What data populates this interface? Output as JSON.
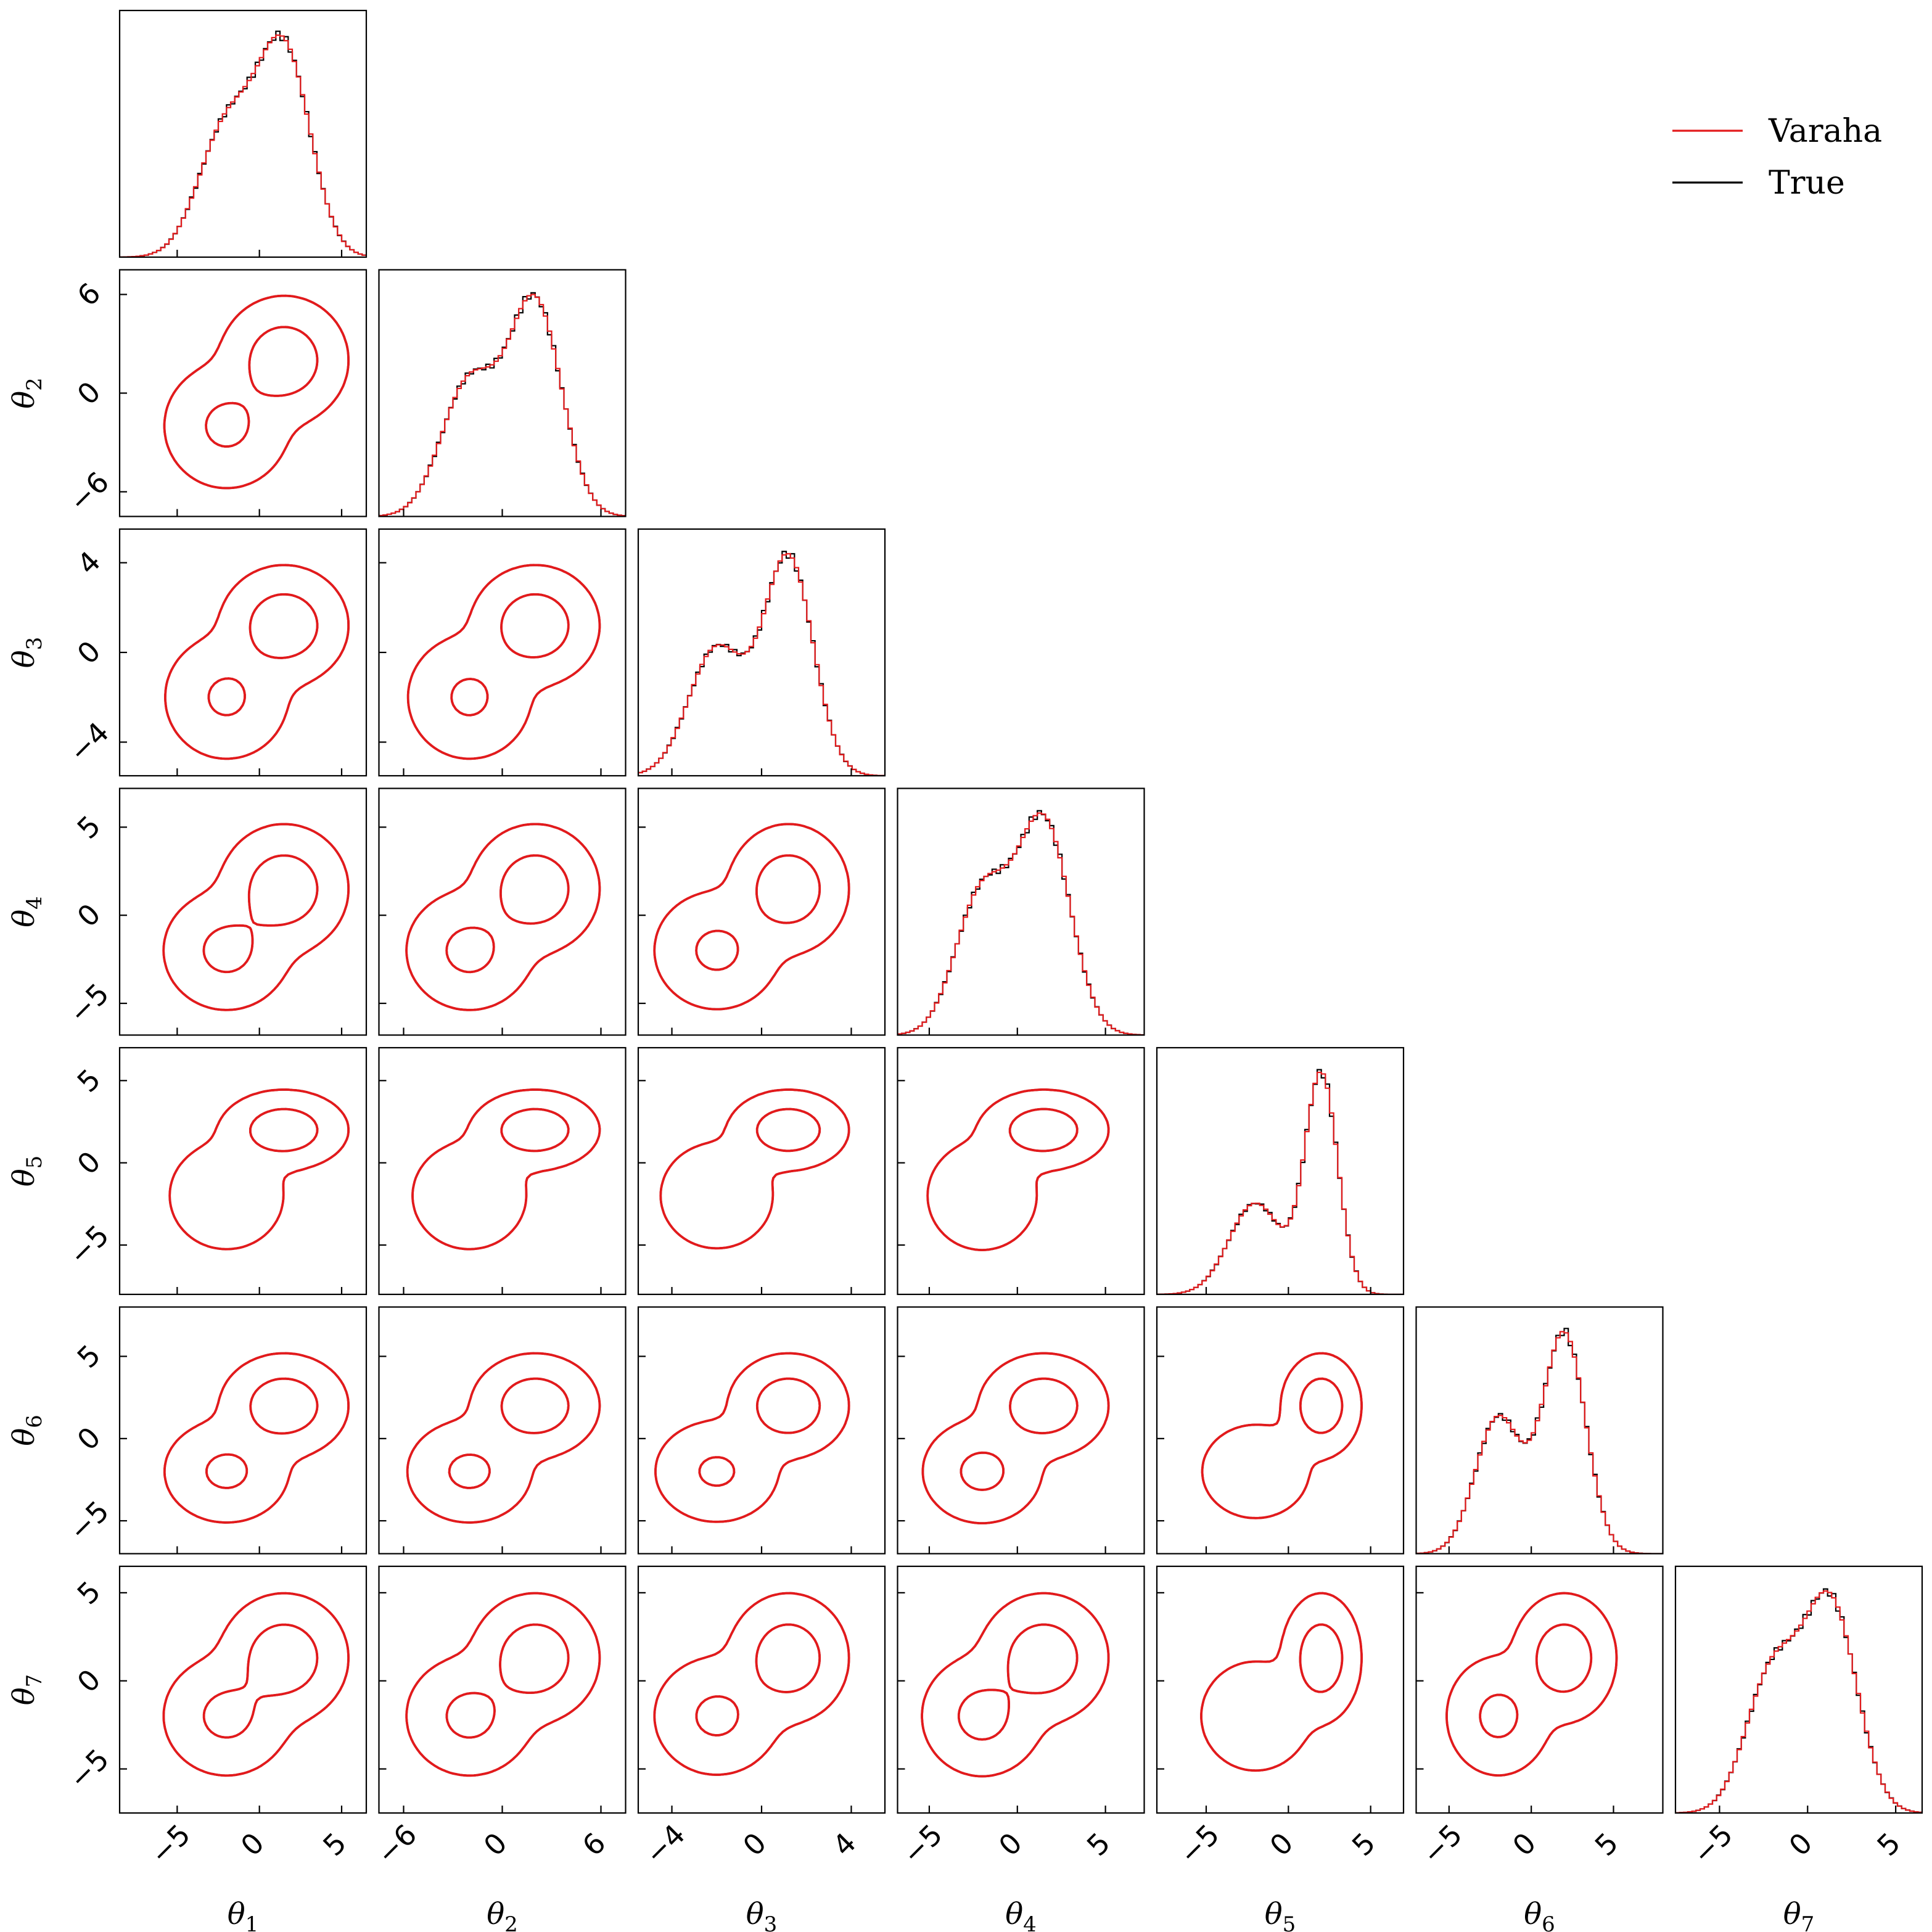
{
  "chart_data": {
    "type": "corner",
    "parameters": [
      "θ1",
      "θ2",
      "θ3",
      "θ4",
      "θ5",
      "θ6",
      "θ7"
    ],
    "axis_labels": [
      {
        "sym": "θ",
        "sub": "1"
      },
      {
        "sym": "θ",
        "sub": "2"
      },
      {
        "sym": "θ",
        "sub": "3"
      },
      {
        "sym": "θ",
        "sub": "4"
      },
      {
        "sym": "θ",
        "sub": "5"
      },
      {
        "sym": "θ",
        "sub": "6"
      },
      {
        "sym": "θ",
        "sub": "7"
      }
    ],
    "ranges": [
      [
        -8.5,
        6.5
      ],
      [
        -7.5,
        7.5
      ],
      [
        -5.5,
        5.5
      ],
      [
        -6.8,
        7.2
      ],
      [
        -8.0,
        7.0
      ],
      [
        -7.0,
        8.0
      ],
      [
        -7.5,
        6.5
      ]
    ],
    "ticks": [
      [
        -5,
        0,
        5
      ],
      [
        -6,
        0,
        6
      ],
      [
        -4,
        0,
        4
      ],
      [
        -5,
        0,
        5
      ],
      [
        -5,
        0,
        5
      ],
      [
        -5,
        0,
        5
      ],
      [
        -5,
        0,
        5
      ]
    ],
    "tick_labels": [
      [
        "−5",
        "0",
        "5"
      ],
      [
        "−6",
        "0",
        "6"
      ],
      [
        "−4",
        "0",
        "4"
      ],
      [
        "−5",
        "0",
        "5"
      ],
      [
        "−5",
        "0",
        "5"
      ],
      [
        "−5",
        "0",
        "5"
      ],
      [
        "−5",
        "0",
        "5"
      ]
    ],
    "modes": [
      {
        "mu": [
          -2.0,
          -2.0,
          -2.0,
          -2.0,
          -2.0,
          -2.0,
          -2.0
        ],
        "sigma": [
          1.7,
          1.7,
          1.25,
          1.5,
          1.6,
          1.4,
          1.5
        ],
        "weight": 0.4
      },
      {
        "mu": [
          1.5,
          2.0,
          1.2,
          1.5,
          2.0,
          2.0,
          1.3
        ],
        "sigma": [
          1.6,
          1.6,
          1.1,
          1.5,
          1.0,
          1.3,
          1.5
        ],
        "weight": 0.6
      }
    ],
    "contour_levels": [
      "inner",
      "outer"
    ],
    "series": [
      {
        "name": "Varaha",
        "color": "#e31a1c"
      },
      {
        "name": "True",
        "color": "#000000"
      }
    ],
    "legend": {
      "position": "top-right"
    },
    "grid": false
  }
}
